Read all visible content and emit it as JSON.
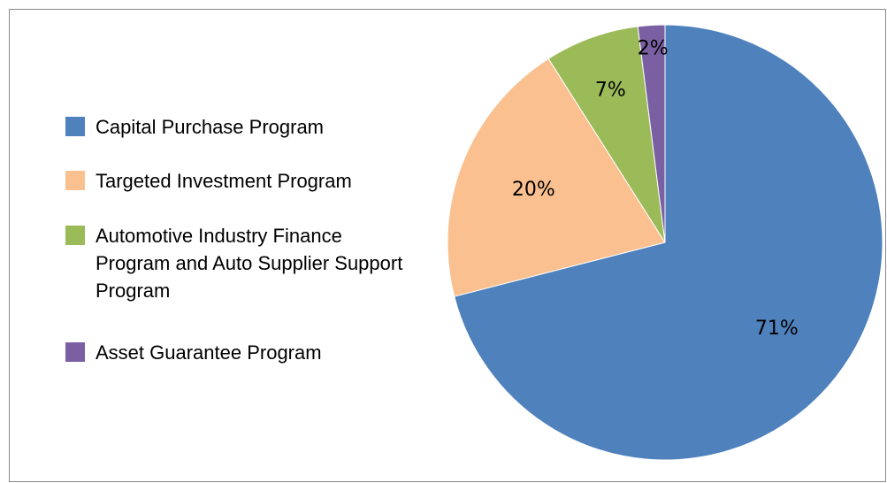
{
  "chart_data": {
    "type": "pie",
    "categories": [
      "Capital Purchase Program",
      "Targeted Investment Program",
      "Automotive Industry Finance Program and Auto Supplier Support Program",
      "Asset Guarantee Program"
    ],
    "values": [
      71,
      20,
      7,
      2
    ],
    "value_labels": [
      "71%",
      "20%",
      "7%",
      "2%"
    ],
    "colors": [
      "#4f81bd",
      "#fac090",
      "#9bbb59",
      "#7b5fa3"
    ],
    "legend": "left"
  }
}
